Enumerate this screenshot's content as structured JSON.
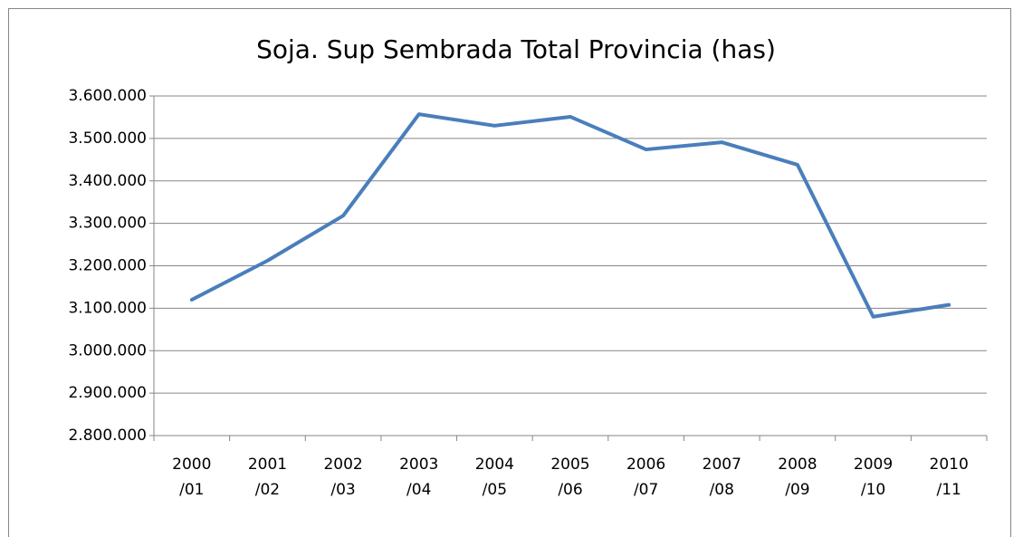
{
  "chart_data": {
    "type": "line",
    "title": "Soja. Sup Sembrada Total Provincia (has)",
    "categories": [
      "2000 /01",
      "2001 /02",
      "2002 /03",
      "2003 /04",
      "2004 /05",
      "2005 /06",
      "2006 /07",
      "2007 /08",
      "2008 /09",
      "2009 /10",
      "2010 /11"
    ],
    "series": [
      {
        "name": "Soja",
        "color": "#4a7ebb",
        "values": [
          3120000,
          3212000,
          3318000,
          3557000,
          3530000,
          3551000,
          3474000,
          3491000,
          3438000,
          3080000,
          3108000
        ]
      }
    ],
    "ylim": [
      2800000,
      3600000
    ],
    "yticks": [
      {
        "value": 2800000,
        "label": "2.800.000"
      },
      {
        "value": 2900000,
        "label": "2.900.000"
      },
      {
        "value": 3000000,
        "label": "3.000.000"
      },
      {
        "value": 3100000,
        "label": "3.100.000"
      },
      {
        "value": 3200000,
        "label": "3.200.000"
      },
      {
        "value": 3300000,
        "label": "3.300.000"
      },
      {
        "value": 3400000,
        "label": "3.400.000"
      },
      {
        "value": 3500000,
        "label": "3.500.000"
      },
      {
        "value": 3600000,
        "label": "3.600.000"
      }
    ],
    "grid": true
  }
}
